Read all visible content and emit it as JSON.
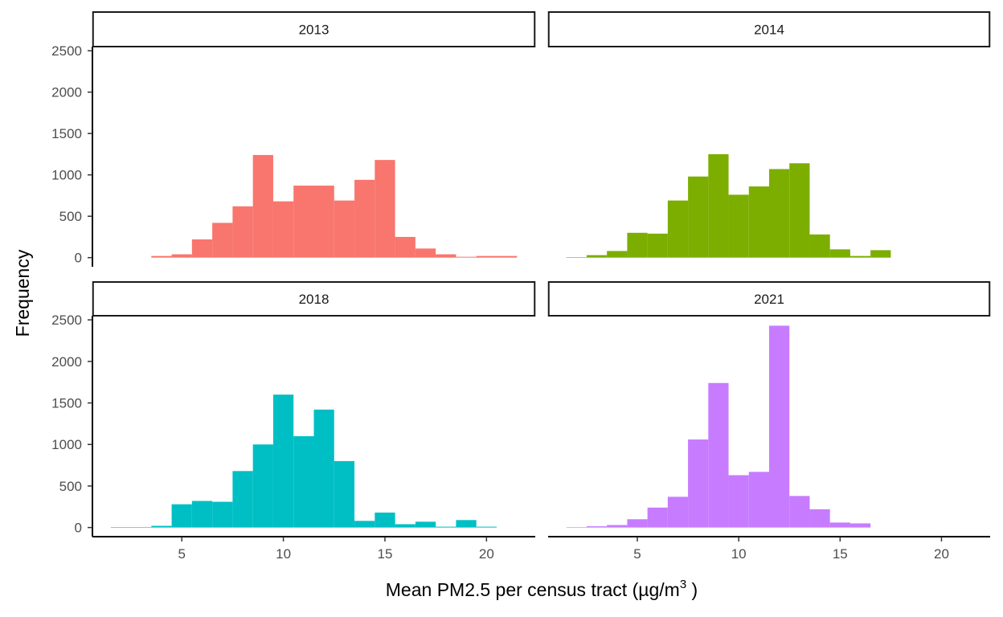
{
  "chart_data": {
    "type": "bar",
    "ylabel": "Frequency",
    "xlabel": "Mean PM2.5 per census tract (µg/m",
    "xlabel_superscript": "3",
    "xlabel_suffix": " )",
    "xlim": [
      0.6,
      22.4
    ],
    "ylim": [
      -110,
      2550
    ],
    "x_ticks": [
      5,
      10,
      15,
      20
    ],
    "y_ticks": [
      0,
      500,
      1000,
      1500,
      2000,
      2500
    ],
    "bin_width": 1,
    "grid": false,
    "legend": "none",
    "panels": [
      {
        "label": "2013",
        "color": "#F8766D",
        "bins": [
          {
            "x": 4,
            "y": 20
          },
          {
            "x": 5,
            "y": 40
          },
          {
            "x": 6,
            "y": 220
          },
          {
            "x": 7,
            "y": 420
          },
          {
            "x": 8,
            "y": 620
          },
          {
            "x": 9,
            "y": 1240
          },
          {
            "x": 10,
            "y": 680
          },
          {
            "x": 11,
            "y": 870
          },
          {
            "x": 12,
            "y": 870
          },
          {
            "x": 13,
            "y": 690
          },
          {
            "x": 14,
            "y": 940
          },
          {
            "x": 15,
            "y": 1180
          },
          {
            "x": 16,
            "y": 250
          },
          {
            "x": 17,
            "y": 110
          },
          {
            "x": 18,
            "y": 40
          },
          {
            "x": 19,
            "y": 10
          },
          {
            "x": 20,
            "y": 20
          },
          {
            "x": 21,
            "y": 20
          }
        ]
      },
      {
        "label": "2014",
        "color": "#7CAE00",
        "bins": [
          {
            "x": 2,
            "y": 3
          },
          {
            "x": 3,
            "y": 30
          },
          {
            "x": 4,
            "y": 80
          },
          {
            "x": 5,
            "y": 300
          },
          {
            "x": 6,
            "y": 290
          },
          {
            "x": 7,
            "y": 690
          },
          {
            "x": 8,
            "y": 980
          },
          {
            "x": 9,
            "y": 1250
          },
          {
            "x": 10,
            "y": 760
          },
          {
            "x": 11,
            "y": 860
          },
          {
            "x": 12,
            "y": 1070
          },
          {
            "x": 13,
            "y": 1140
          },
          {
            "x": 14,
            "y": 280
          },
          {
            "x": 15,
            "y": 100
          },
          {
            "x": 16,
            "y": 20
          },
          {
            "x": 17,
            "y": 90
          }
        ]
      },
      {
        "label": "2018",
        "color": "#00BFC4",
        "bins": [
          {
            "x": 2,
            "y": 5
          },
          {
            "x": 3,
            "y": 3
          },
          {
            "x": 4,
            "y": 20
          },
          {
            "x": 5,
            "y": 280
          },
          {
            "x": 6,
            "y": 320
          },
          {
            "x": 7,
            "y": 310
          },
          {
            "x": 8,
            "y": 680
          },
          {
            "x": 9,
            "y": 1000
          },
          {
            "x": 10,
            "y": 1600
          },
          {
            "x": 11,
            "y": 1100
          },
          {
            "x": 12,
            "y": 1420
          },
          {
            "x": 13,
            "y": 800
          },
          {
            "x": 14,
            "y": 80
          },
          {
            "x": 15,
            "y": 180
          },
          {
            "x": 16,
            "y": 40
          },
          {
            "x": 17,
            "y": 70
          },
          {
            "x": 18,
            "y": 10
          },
          {
            "x": 19,
            "y": 90
          },
          {
            "x": 20,
            "y": 10
          }
        ]
      },
      {
        "label": "2021",
        "color": "#C77CFF",
        "bins": [
          {
            "x": 2,
            "y": 3
          },
          {
            "x": 3,
            "y": 15
          },
          {
            "x": 4,
            "y": 30
          },
          {
            "x": 5,
            "y": 100
          },
          {
            "x": 6,
            "y": 240
          },
          {
            "x": 7,
            "y": 370
          },
          {
            "x": 8,
            "y": 1060
          },
          {
            "x": 9,
            "y": 1740
          },
          {
            "x": 10,
            "y": 630
          },
          {
            "x": 11,
            "y": 670
          },
          {
            "x": 12,
            "y": 2430
          },
          {
            "x": 13,
            "y": 380
          },
          {
            "x": 14,
            "y": 220
          },
          {
            "x": 15,
            "y": 60
          },
          {
            "x": 16,
            "y": 50
          }
        ]
      }
    ]
  }
}
